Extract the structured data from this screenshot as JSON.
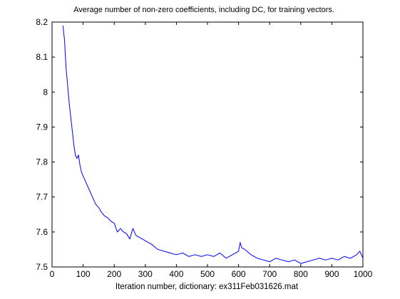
{
  "chart_data": {
    "type": "line",
    "title": "Average number of non-zero coefficients, including DC, for training vectors.",
    "xlabel": "Iteration number, dictionary: ex311Feb031626.mat",
    "ylabel": "",
    "xlim": [
      0,
      1000
    ],
    "ylim": [
      7.5,
      8.2
    ],
    "xticks": [
      0,
      100,
      200,
      300,
      400,
      500,
      600,
      700,
      800,
      900,
      1000
    ],
    "yticks": [
      7.5,
      7.6,
      7.7,
      7.8,
      7.9,
      8,
      8.1,
      8.2
    ],
    "xtick_labels": [
      "0",
      "100",
      "200",
      "300",
      "400",
      "500",
      "600",
      "700",
      "800",
      "900",
      "1000"
    ],
    "ytick_labels": [
      "7.5",
      "7.6",
      "7.7",
      "7.8",
      "7.9",
      "8",
      "8.1",
      "8.2"
    ],
    "grid": false,
    "legend": "none",
    "series": [
      {
        "color": "#0000ff",
        "x": [
          35,
          40,
          45,
          50,
          55,
          60,
          65,
          70,
          75,
          80,
          85,
          90,
          95,
          100,
          110,
          120,
          130,
          140,
          150,
          160,
          170,
          180,
          190,
          200,
          210,
          220,
          230,
          240,
          250,
          260,
          270,
          280,
          290,
          300,
          320,
          340,
          360,
          380,
          400,
          420,
          440,
          460,
          480,
          500,
          520,
          540,
          560,
          580,
          600,
          605,
          610,
          620,
          640,
          660,
          680,
          700,
          720,
          740,
          760,
          780,
          800,
          820,
          840,
          860,
          880,
          900,
          920,
          940,
          960,
          980,
          990,
          1000
        ],
        "y": [
          8.19,
          8.15,
          8.07,
          8.02,
          7.97,
          7.93,
          7.89,
          7.85,
          7.82,
          7.81,
          7.82,
          7.79,
          7.77,
          7.76,
          7.74,
          7.72,
          7.7,
          7.68,
          7.67,
          7.655,
          7.645,
          7.64,
          7.63,
          7.625,
          7.6,
          7.61,
          7.6,
          7.595,
          7.58,
          7.61,
          7.59,
          7.585,
          7.58,
          7.575,
          7.565,
          7.55,
          7.545,
          7.54,
          7.535,
          7.54,
          7.53,
          7.535,
          7.53,
          7.535,
          7.53,
          7.54,
          7.525,
          7.535,
          7.545,
          7.57,
          7.555,
          7.55,
          7.535,
          7.525,
          7.52,
          7.515,
          7.525,
          7.52,
          7.515,
          7.52,
          7.51,
          7.515,
          7.52,
          7.525,
          7.52,
          7.525,
          7.52,
          7.53,
          7.525,
          7.535,
          7.545,
          7.525
        ]
      }
    ]
  }
}
